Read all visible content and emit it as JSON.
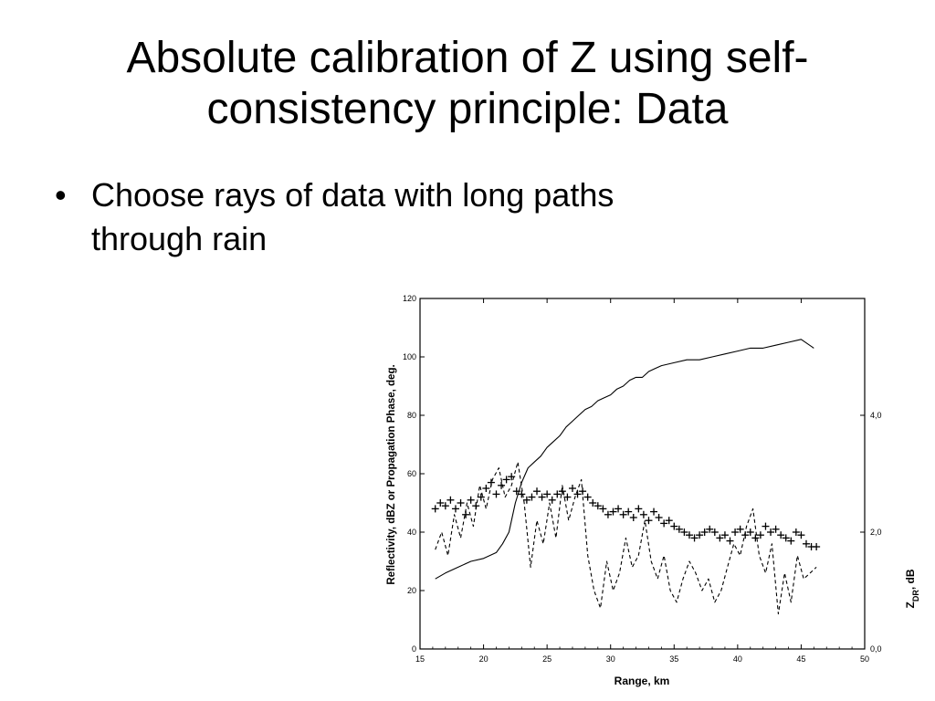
{
  "slide": {
    "title_line1": "Absolute calibration of Z using self-",
    "title_line2": "consistency principle: Data",
    "bullets": [
      {
        "line1": "Choose rays of data with long paths",
        "line2": "through rain"
      }
    ]
  },
  "chart_data": {
    "type": "line",
    "xlabel": "Range, km",
    "ylabel": "Reflectivity, dBZ or Propagation Phase, deg.",
    "y2label": "Z_DR, dB",
    "xlim": [
      15,
      50
    ],
    "ylim": [
      0,
      120
    ],
    "y2lim": [
      0,
      6
    ],
    "x_ticks": [
      "15",
      "20",
      "25",
      "30",
      "35",
      "40",
      "45",
      "50"
    ],
    "y_ticks": [
      "0",
      "20",
      "40",
      "60",
      "80",
      "100",
      "120"
    ],
    "y2_ticks": [
      "0,0",
      "2,0",
      "4,0"
    ],
    "grid": false,
    "series": [
      {
        "style": "solid",
        "axis": "left",
        "x": [
          16.2,
          17,
          18,
          19,
          20,
          21,
          21.5,
          22,
          22.5,
          23,
          23.5,
          24,
          24.5,
          25,
          25.5,
          26,
          26.5,
          27,
          27.5,
          28,
          28.5,
          29,
          29.5,
          30,
          30.5,
          31,
          31.5,
          32,
          32.5,
          33,
          33.5,
          34,
          35,
          36,
          37,
          38,
          39,
          40,
          41,
          42,
          43,
          44,
          45,
          46
        ],
        "y": [
          24,
          26,
          28,
          30,
          31,
          33,
          36,
          40,
          50,
          57,
          62,
          64,
          66,
          69,
          71,
          73,
          76,
          78,
          80,
          82,
          83,
          85,
          86,
          87,
          89,
          90,
          92,
          93,
          93,
          95,
          96,
          97,
          98,
          99,
          99,
          100,
          101,
          102,
          103,
          103,
          104,
          105,
          106,
          103
        ]
      },
      {
        "style": "markers",
        "marker": "+",
        "axis": "left",
        "x": [
          16.2,
          16.6,
          17,
          17.4,
          17.8,
          18.2,
          18.6,
          19,
          19.4,
          19.8,
          20.2,
          20.6,
          21,
          21.4,
          21.8,
          22.2,
          22.6,
          23,
          23.4,
          23.8,
          24.2,
          24.6,
          25,
          25.4,
          25.8,
          26.2,
          26.6,
          27,
          27.4,
          27.8,
          28.2,
          28.6,
          29,
          29.4,
          29.8,
          30.2,
          30.6,
          31,
          31.4,
          31.8,
          32.2,
          32.6,
          33,
          33.4,
          33.8,
          34.2,
          34.6,
          35,
          35.4,
          35.8,
          36.2,
          36.6,
          37,
          37.4,
          37.8,
          38.2,
          38.6,
          39,
          39.4,
          39.8,
          40.2,
          40.6,
          41,
          41.4,
          41.8,
          42.2,
          42.6,
          43,
          43.4,
          43.8,
          44.2,
          44.6,
          45,
          45.4,
          45.8,
          46.2
        ],
        "y": [
          48,
          50,
          49,
          51,
          48,
          50,
          46,
          51,
          49,
          52,
          55,
          57,
          53,
          56,
          58,
          59,
          54,
          53,
          51,
          52,
          54,
          52,
          53,
          51,
          53,
          54,
          52,
          55,
          53,
          54,
          52,
          50,
          49,
          48,
          46,
          47,
          48,
          46,
          47,
          45,
          48,
          46,
          44,
          47,
          45,
          43,
          44,
          42,
          41,
          40,
          39,
          38,
          39,
          40,
          41,
          40,
          38,
          39,
          37,
          40,
          41,
          39,
          40,
          38,
          39,
          42,
          40,
          41,
          39,
          38,
          37,
          40,
          39,
          36,
          35,
          35
        ]
      },
      {
        "style": "dashed",
        "axis": "right",
        "x": [
          16.2,
          16.7,
          17.2,
          17.7,
          18.2,
          18.7,
          19.2,
          19.7,
          20.2,
          20.7,
          21.2,
          21.7,
          22.2,
          22.7,
          23.2,
          23.7,
          24.2,
          24.7,
          25.2,
          25.7,
          26.2,
          26.7,
          27.2,
          27.7,
          28.2,
          28.7,
          29.2,
          29.7,
          30.2,
          30.7,
          31.2,
          31.7,
          32.2,
          32.7,
          33.2,
          33.7,
          34.2,
          34.7,
          35.2,
          35.7,
          36.2,
          36.7,
          37.2,
          37.7,
          38.2,
          38.7,
          39.2,
          39.7,
          40.2,
          40.7,
          41.2,
          41.7,
          42.2,
          42.7,
          43.2,
          43.7,
          44.2,
          44.7,
          45.2,
          45.7,
          46.2
        ],
        "y": [
          1.7,
          2.0,
          1.6,
          2.3,
          1.9,
          2.5,
          2.1,
          2.8,
          2.4,
          2.9,
          3.1,
          2.6,
          2.8,
          3.2,
          2.5,
          1.4,
          2.2,
          1.8,
          2.5,
          1.9,
          2.8,
          2.2,
          2.6,
          2.9,
          1.6,
          1.0,
          0.7,
          1.5,
          1.0,
          1.3,
          1.9,
          1.4,
          1.6,
          2.2,
          1.5,
          1.2,
          1.6,
          1.0,
          0.8,
          1.2,
          1.5,
          1.3,
          1.0,
          1.2,
          0.8,
          1.0,
          1.4,
          1.8,
          1.6,
          2.1,
          2.4,
          1.6,
          1.3,
          1.8,
          0.6,
          1.3,
          0.8,
          1.6,
          1.2,
          1.3,
          1.4
        ]
      }
    ]
  }
}
